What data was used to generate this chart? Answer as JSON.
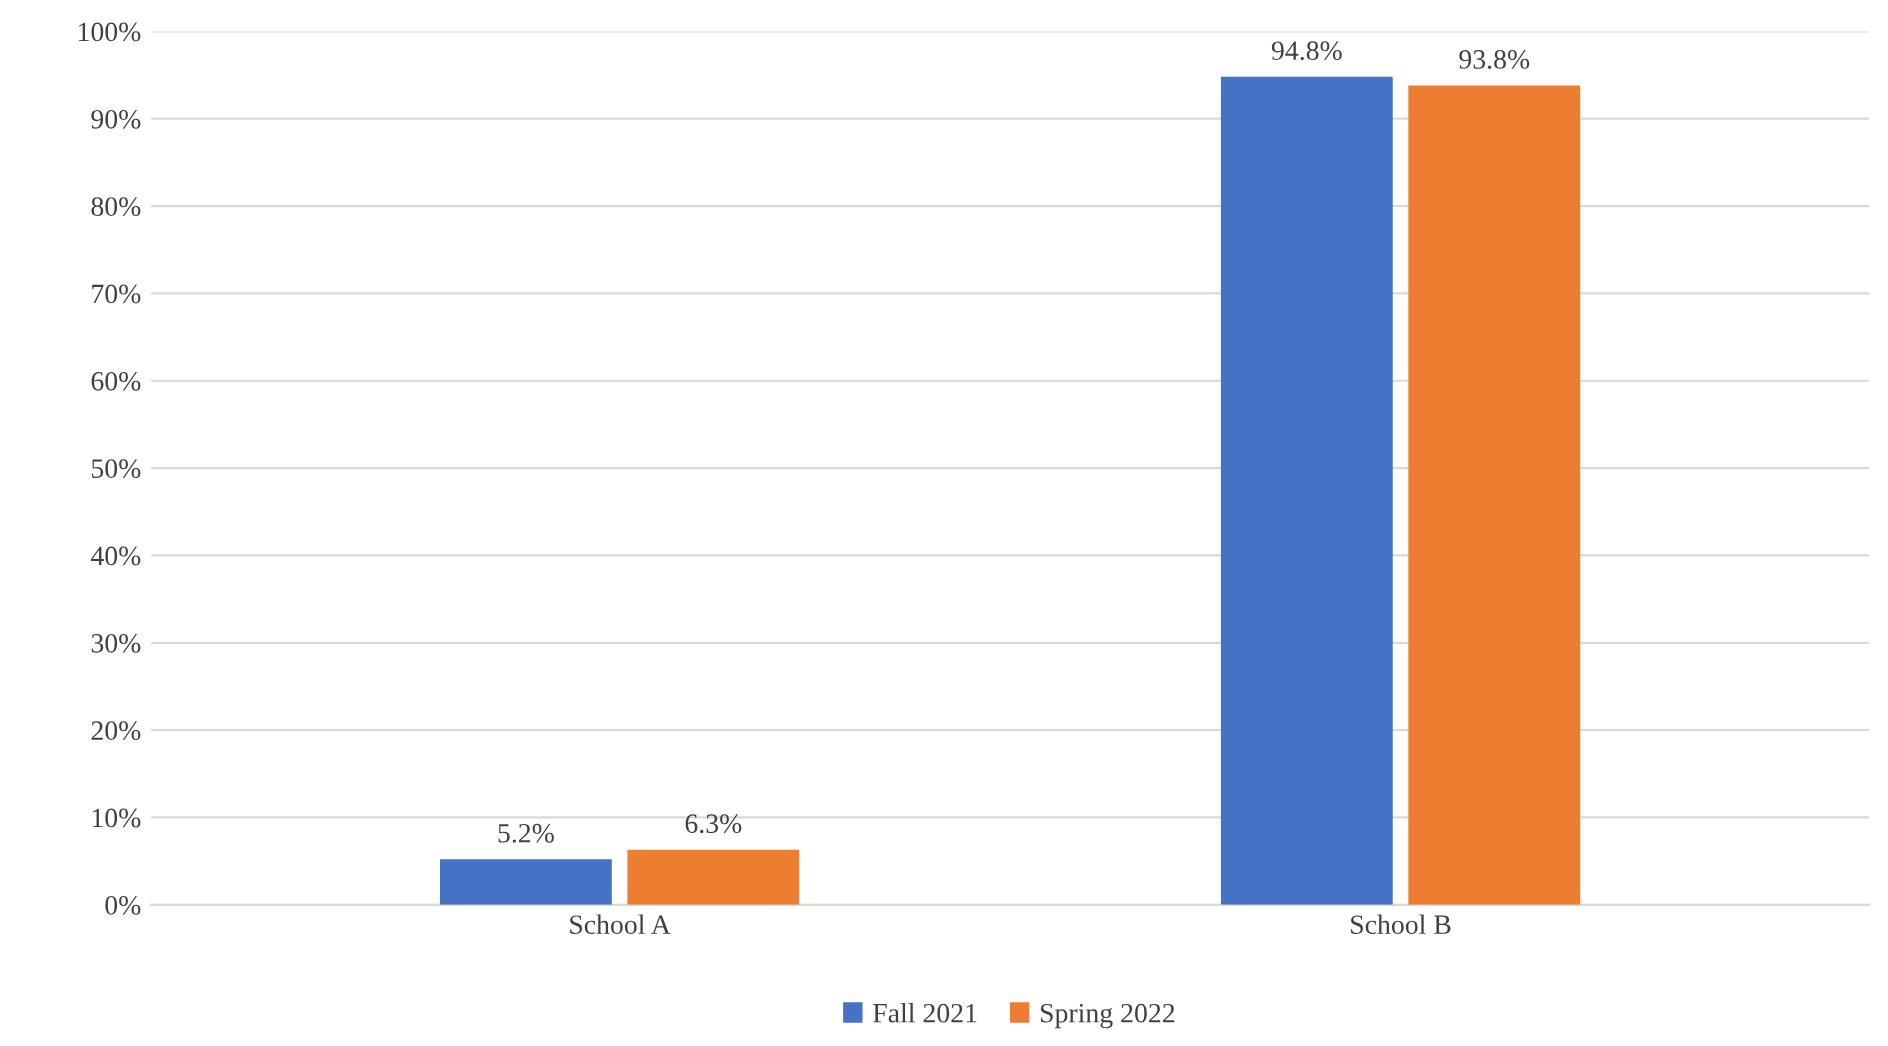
{
  "chart_data": {
    "type": "bar",
    "categories": [
      "School A",
      "School B"
    ],
    "series": [
      {
        "name": "Fall 2021",
        "color": "#4472c4",
        "values": [
          5.2,
          94.8
        ],
        "value_labels": [
          "5.2%",
          "94.8%"
        ]
      },
      {
        "name": "Spring 2022",
        "color": "#ed7d31",
        "values": [
          6.3,
          93.8
        ],
        "value_labels": [
          "6.3%",
          "93.8%"
        ]
      }
    ],
    "ylim": [
      0,
      100
    ],
    "yticks": [
      {
        "value": 0,
        "label": "0%"
      },
      {
        "value": 10,
        "label": "10%"
      },
      {
        "value": 20,
        "label": "20%"
      },
      {
        "value": 30,
        "label": "30%"
      },
      {
        "value": 40,
        "label": "40%"
      },
      {
        "value": 50,
        "label": "50%"
      },
      {
        "value": 60,
        "label": "60%"
      },
      {
        "value": 70,
        "label": "70%"
      },
      {
        "value": 80,
        "label": "80%"
      },
      {
        "value": 90,
        "label": "90%"
      },
      {
        "value": 100,
        "label": "100%"
      }
    ],
    "grid": "y",
    "legend": "bottom"
  }
}
